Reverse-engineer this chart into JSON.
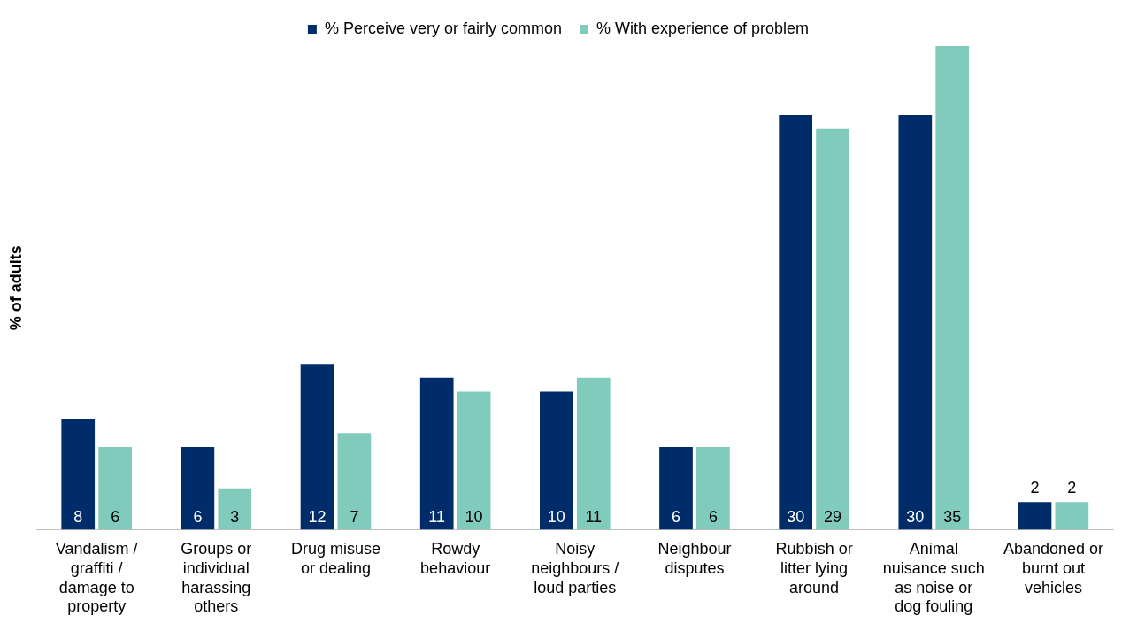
{
  "chart_data": {
    "type": "bar",
    "ylabel": "% of adults",
    "categories": [
      "Vandalism / graffiti / damage to property",
      "Groups or individual harassing others",
      "Drug misuse or dealing",
      "Rowdy behaviour",
      "Noisy neighbours / loud parties",
      "Neighbour disputes",
      "Rubbish or litter lying around",
      "Animal nuisance such as noise or dog fouling",
      "Abandoned or burnt out vehicles"
    ],
    "series": [
      {
        "name": "% Perceive very or fairly common",
        "color": "#002d6a",
        "values": [
          8,
          6,
          12,
          11,
          10,
          6,
          30,
          30,
          2
        ]
      },
      {
        "name": "% With experience of problem",
        "color": "#80cbbc",
        "values": [
          6,
          3,
          7,
          10,
          11,
          6,
          29,
          35,
          2
        ]
      }
    ],
    "data_labels": true,
    "grid": false,
    "legend": "top"
  }
}
